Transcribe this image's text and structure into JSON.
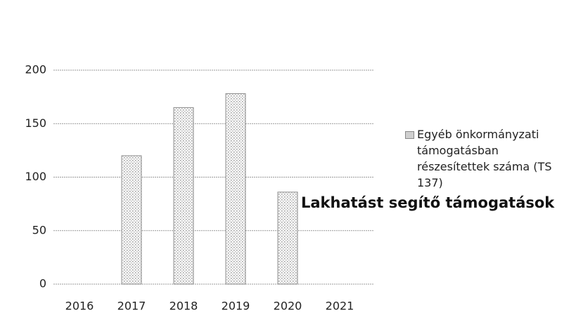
{
  "chart_data": {
    "type": "bar",
    "title": "Lakhatást segítő támogatások",
    "categories": [
      "2016",
      "2017",
      "2018",
      "2019",
      "2020",
      "2021"
    ],
    "series": [
      {
        "name": "Egyéb önkormányzati támogatásban részesítettek száma (TS 137)",
        "color": "#cfcfcf",
        "values": [
          null,
          120,
          165,
          178,
          86,
          null
        ]
      }
    ],
    "ylim": [
      0,
      200
    ],
    "yticks": [
      0,
      50,
      100,
      150,
      200
    ],
    "grid": true,
    "legend": "right"
  }
}
